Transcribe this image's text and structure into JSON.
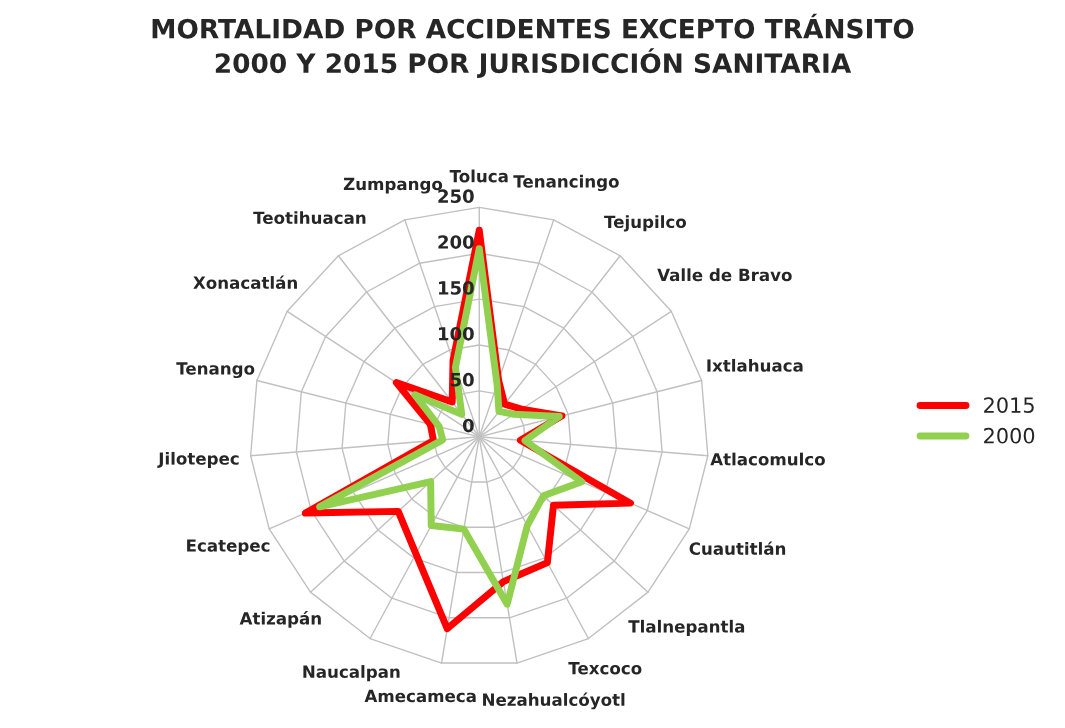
{
  "chart_data": {
    "type": "radar",
    "title": "MORTALIDAD POR ACCIDENTES EXCEPTO TRÁNSITO\n2000 Y 2015 POR JURISDICCIÓN SANITARIA",
    "categories": [
      "Toluca",
      "Tenancingo",
      "Tejupilco",
      "Valle de Bravo",
      "Ixtlahuaca",
      "Atlacomulco",
      "Cuautitlán",
      "Tlalnepantla",
      "Texcoco",
      "Nezahualcóyotl",
      "Amecameca",
      "Naucalpan",
      "Atizapán",
      "Ecatepec",
      "Jilotepec",
      "Tenango",
      "Xonacatlán",
      "Teotihuacan",
      "Zumpango"
    ],
    "series": [
      {
        "name": "2015",
        "color": "#ff0000",
        "values": [
          225,
          65,
          45,
          55,
          93,
          45,
          180,
          110,
          156,
          160,
          212,
          145,
          120,
          207,
          50,
          55,
          108,
          48,
          88
        ]
      },
      {
        "name": "2000",
        "color": "#92d050",
        "values": [
          205,
          60,
          35,
          45,
          90,
          50,
          122,
          95,
          110,
          185,
          102,
          110,
          72,
          190,
          40,
          45,
          84,
          31,
          80
        ]
      }
    ],
    "ylim": [
      0,
      250
    ],
    "yticks": [
      0,
      50,
      100,
      150,
      200,
      250
    ],
    "grid": true,
    "legend": "right",
    "marker": "none",
    "line_style": "solid"
  }
}
